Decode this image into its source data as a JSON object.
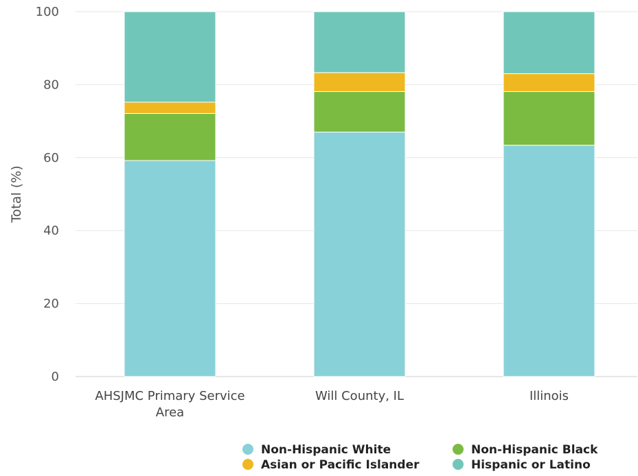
{
  "chart_data": {
    "type": "bar",
    "stacked": true,
    "title": "",
    "xlabel": "",
    "ylabel": "Total (%)",
    "ylim": [
      0,
      100
    ],
    "yticks": [
      0,
      20,
      40,
      60,
      80,
      100
    ],
    "grid": true,
    "legend_position": "bottom",
    "categories": [
      [
        "AHSJMC Primary Service",
        "Area"
      ],
      [
        "Will County, IL"
      ],
      [
        "Illinois"
      ]
    ],
    "series": [
      {
        "name": "Non-Hispanic White",
        "color": "#88d1d8",
        "values": [
          59.2,
          67.0,
          63.4
        ]
      },
      {
        "name": "Non-Hispanic Black",
        "color": "#7cbb42",
        "values": [
          12.9,
          11.1,
          14.7
        ]
      },
      {
        "name": "Asian or Pacific Islander",
        "color": "#efb820",
        "values": [
          3.1,
          5.2,
          4.9
        ]
      },
      {
        "name": "Hispanic or Latino",
        "color": "#70c7b9",
        "values": [
          24.8,
          16.7,
          17.0
        ]
      }
    ],
    "legend_order": [
      0,
      1,
      2,
      3
    ]
  }
}
